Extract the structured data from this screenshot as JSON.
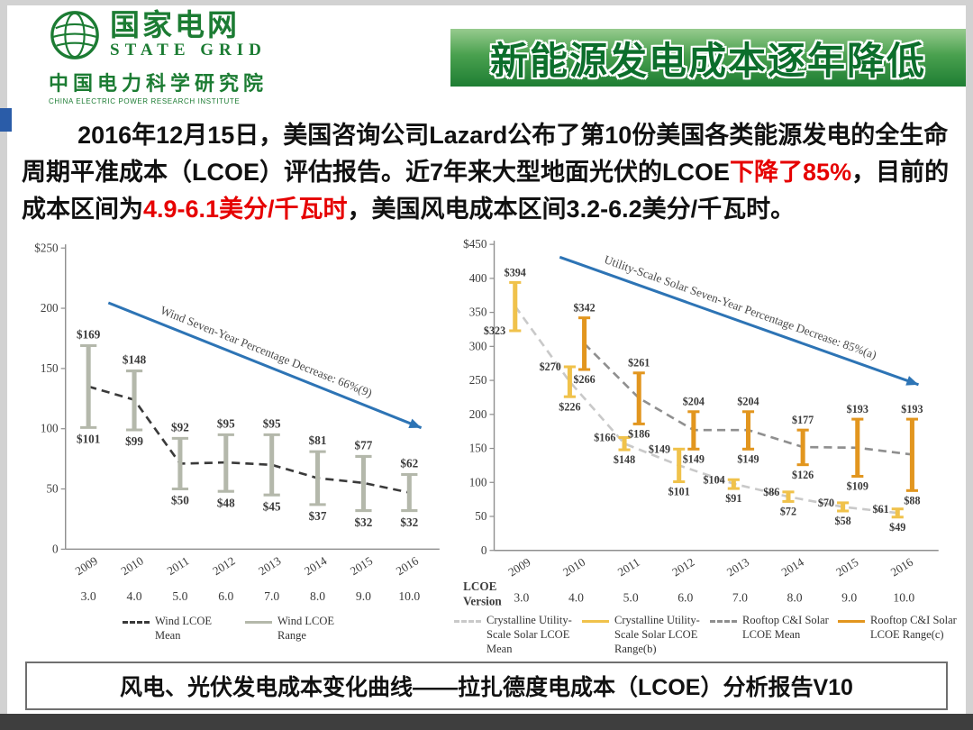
{
  "header": {
    "logo": {
      "cn_name": "国家电网",
      "en_name": "STATE GRID",
      "institute_cn": "中国电力科学研究院",
      "institute_en": "CHINA ELECTRIC POWER RESEARCH INSTITUTE"
    },
    "title": "新能源发电成本逐年降低",
    "colors": {
      "brand_green": "#1c7c33",
      "banner_green": "#2e8b41"
    }
  },
  "intro": {
    "part1": "2016年12月15日，美国咨询公司Lazard公布了第10份美国各类能源发电的全生命周期平准成本（LCOE）评估报告。近7年来大型地面光伏的LCOE",
    "highlight1": "下降了85%",
    "part2": "，目前的成本区间为",
    "highlight2": "4.9-6.1美分/千瓦时",
    "part3": "，美国风电成本区间3.2-6.2美分/千瓦时。",
    "highlight_color": "#e60000"
  },
  "chart_data": [
    {
      "type": "range-bar-with-mean-line",
      "title": "Wind LCOE",
      "annotation": "Wind Seven-Year Percentage Decrease: 66%(9)",
      "annotation_arrow_color": "#2d74b5",
      "categories": [
        "2009",
        "2010",
        "2011",
        "2012",
        "2013",
        "2014",
        "2015",
        "2016"
      ],
      "version_labels": [
        "3.0",
        "4.0",
        "5.0",
        "6.0",
        "7.0",
        "8.0",
        "9.0",
        "10.0"
      ],
      "ylim": [
        0,
        250
      ],
      "ytick_labels": [
        "$250",
        "200",
        "150",
        "100",
        "50",
        "0"
      ],
      "grid": false,
      "series": [
        {
          "name": "Wind LCOE Mean",
          "kind": "line",
          "dash": true,
          "color": "#3a3a3a",
          "dx": 0,
          "values": [
            135,
            124,
            71,
            72,
            70,
            59,
            55,
            47
          ]
        },
        {
          "name": "Wind LCOE Range",
          "kind": "range",
          "color": "#b4b8ab",
          "dx": 0,
          "label_mode": "center",
          "high": [
            169,
            148,
            92,
            95,
            95,
            81,
            77,
            62
          ],
          "low": [
            101,
            99,
            50,
            48,
            45,
            37,
            32,
            32
          ]
        }
      ],
      "legend": [
        {
          "label": "Wind LCOE Mean",
          "style": "dashed",
          "color": "#3a3a3a"
        },
        {
          "label": "Wind LCOE Range",
          "style": "solid",
          "color": "#b4b8ab"
        }
      ]
    },
    {
      "type": "range-bar-with-mean-line",
      "title": "Solar LCOE",
      "annotation": "Utility-Scale Solar Seven-Year Percentage Decrease: 85%(a)",
      "annotation_arrow_color": "#2d74b5",
      "categories": [
        "2009",
        "2010",
        "2011",
        "2012",
        "2013",
        "2014",
        "2015",
        "2016"
      ],
      "version_labels": [
        "3.0",
        "4.0",
        "5.0",
        "6.0",
        "7.0",
        "8.0",
        "9.0",
        "10.0"
      ],
      "version_axis_label": "LCOE Version",
      "ylim": [
        0,
        450
      ],
      "ytick_labels": [
        "$450",
        "400",
        "350",
        "300",
        "250",
        "200",
        "150",
        "100",
        "50",
        "0"
      ],
      "grid": false,
      "series": [
        {
          "name": "Crystalline Utility-Scale Solar LCOE Mean",
          "kind": "line",
          "dash": true,
          "color": "#c9c9c9",
          "dx": -7,
          "values": [
            359,
            248,
            157,
            125,
            98,
            79,
            64,
            55
          ]
        },
        {
          "name": "Rooftop C&I Solar LCOE Mean",
          "kind": "line",
          "dash": true,
          "color": "#8f8f8f",
          "dx": 9,
          "values": [
            null,
            304,
            224,
            177,
            177,
            152,
            151,
            141
          ]
        },
        {
          "name": "Crystalline Utility-Scale Solar LCOE Range(b)",
          "kind": "range",
          "color": "#f0c24b",
          "dx": -7,
          "label_mode": "left-top",
          "high": [
            394,
            270,
            166,
            149,
            104,
            86,
            70,
            61
          ],
          "low": [
            323,
            226,
            148,
            101,
            91,
            72,
            58,
            49
          ]
        },
        {
          "name": "Rooftop C&I Solar LCOE Range(c)",
          "kind": "range",
          "color": "#e2961f",
          "dx": 9,
          "label_mode": "top-bottom",
          "high": [
            null,
            342,
            261,
            204,
            204,
            177,
            193,
            193
          ],
          "low": [
            null,
            266,
            186,
            149,
            149,
            126,
            109,
            88
          ]
        }
      ],
      "legend": [
        {
          "label": "Crystalline Utility-Scale Solar LCOE Mean",
          "style": "dashed",
          "color": "#c9c9c9"
        },
        {
          "label": "Crystalline Utility-Scale Solar LCOE Range(b)",
          "style": "solid",
          "color": "#f0c24b"
        },
        {
          "label": "Rooftop C&I Solar LCOE Mean",
          "style": "dashed",
          "color": "#8f8f8f"
        },
        {
          "label": "Rooftop C&I Solar LCOE Range(c)",
          "style": "solid",
          "color": "#e2961f"
        }
      ]
    }
  ],
  "caption": {
    "text": "风电、光伏发电成本变化曲线——拉扎德度电成本（LCOE）分析报告V10"
  }
}
